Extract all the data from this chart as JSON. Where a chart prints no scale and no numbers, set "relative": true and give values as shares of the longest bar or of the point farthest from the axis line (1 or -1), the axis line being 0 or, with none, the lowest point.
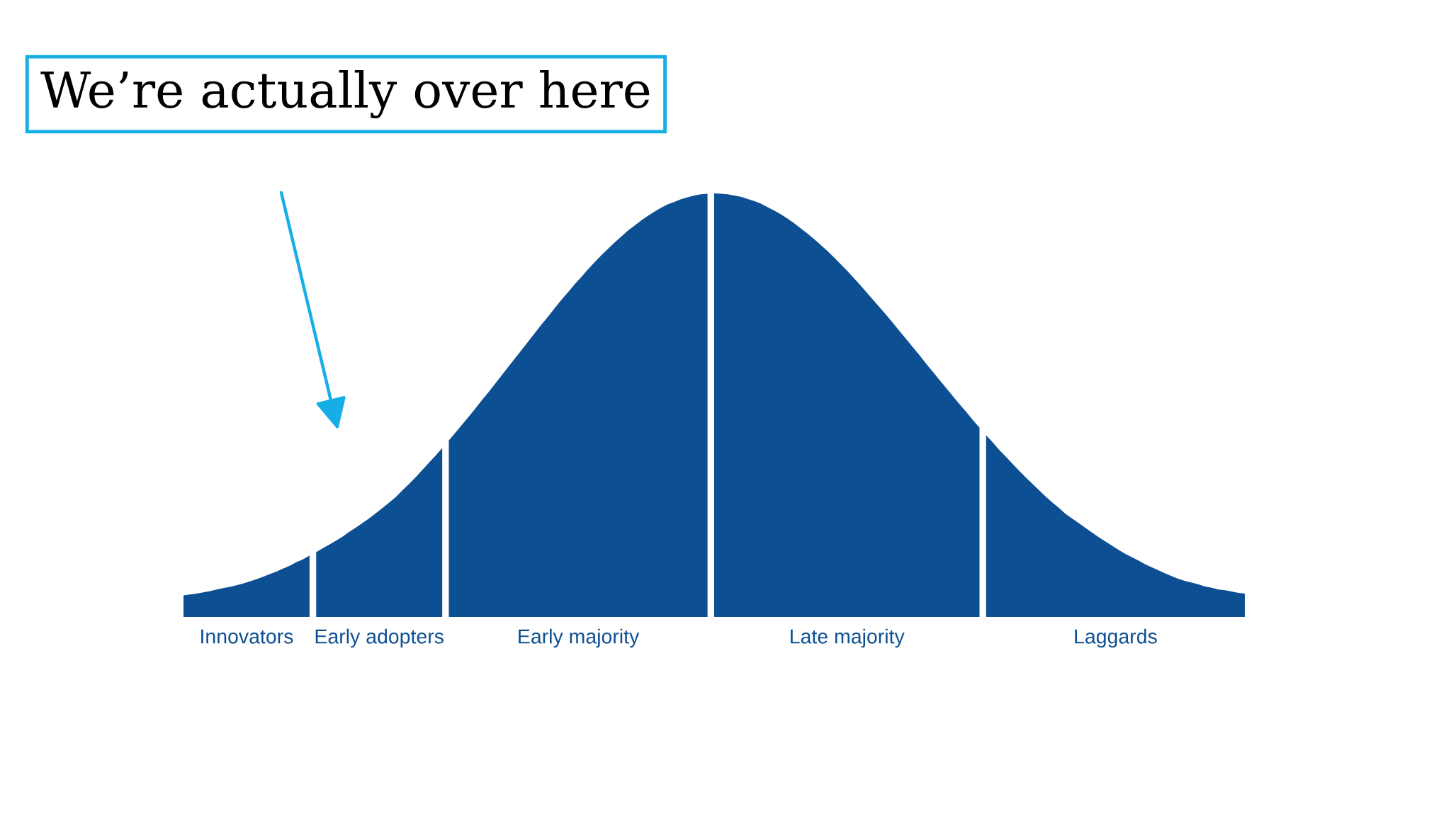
{
  "chart_data": {
    "type": "area",
    "relative": true,
    "annotations": [
      "We’re actually over here"
    ],
    "categories": [
      null,
      null,
      null,
      null,
      null,
      null,
      null,
      null,
      null,
      null,
      null,
      null,
      null,
      null,
      null,
      null,
      null,
      null,
      null,
      null,
      null,
      null,
      null,
      null,
      null,
      null,
      null,
      null,
      null,
      null,
      null,
      null,
      null,
      null,
      null,
      null,
      null,
      null,
      null,
      null,
      null,
      null,
      null,
      null,
      null,
      null,
      null,
      null,
      null,
      null,
      null,
      null,
      null,
      null,
      null,
      null,
      null,
      null,
      null,
      null,
      null,
      null,
      null,
      null,
      null,
      null,
      null,
      null,
      null,
      null,
      null,
      null,
      null,
      null,
      null,
      null,
      null,
      null,
      null,
      null,
      null,
      null,
      null,
      null,
      null,
      null,
      null,
      null,
      null,
      null,
      null,
      null,
      null,
      null,
      null,
      null,
      null,
      null,
      null,
      null,
      null,
      null,
      null,
      null,
      null,
      null,
      null,
      null,
      null,
      null,
      null,
      null,
      null,
      null,
      null,
      null,
      null,
      null,
      null,
      null,
      null,
      null,
      null,
      null,
      null,
      null,
      null,
      null,
      null,
      null,
      null,
      null,
      null,
      null,
      null,
      null,
      null,
      null,
      null,
      null,
      null,
      null,
      null,
      null,
      null,
      null,
      null,
      null,
      null,
      null,
      null,
      null,
      null,
      null,
      null,
      null,
      null,
      null,
      null,
      null,
      null
    ],
    "series": [
      {
        "name": "Innovators",
        "color": "#0d4f93",
        "values": [
          0.051,
          0.053,
          0.055,
          0.058,
          0.061,
          0.065,
          0.068,
          0.071,
          0.075,
          0.079,
          0.084,
          0.089,
          0.095,
          0.101,
          0.107,
          0.114,
          0.121,
          0.129,
          0.136,
          0.145,
          null,
          null,
          null,
          null,
          null,
          null,
          null,
          null,
          null,
          null,
          null,
          null,
          null,
          null,
          null,
          null,
          null,
          null,
          null,
          null,
          null,
          null,
          null,
          null,
          null,
          null,
          null,
          null,
          null,
          null,
          null,
          null,
          null,
          null,
          null,
          null,
          null,
          null,
          null,
          null,
          null,
          null,
          null,
          null,
          null,
          null,
          null,
          null,
          null,
          null,
          null,
          null,
          null,
          null,
          null,
          null,
          null,
          null,
          null,
          null,
          null,
          null,
          null,
          null,
          null,
          null,
          null,
          null,
          null,
          null,
          null,
          null,
          null,
          null,
          null,
          null,
          null,
          null,
          null,
          null,
          null,
          null,
          null,
          null,
          null,
          null,
          null,
          null,
          null,
          null,
          null,
          null,
          null,
          null,
          null,
          null,
          null,
          null,
          null,
          null,
          null,
          null,
          null,
          null,
          null,
          null,
          null,
          null,
          null,
          null,
          null,
          null,
          null,
          null,
          null,
          null,
          null,
          null,
          null,
          null,
          null,
          null,
          null,
          null,
          null,
          null,
          null,
          null,
          null,
          null,
          null,
          null,
          null,
          null,
          null,
          null,
          null,
          null,
          null,
          null,
          null
        ]
      },
      {
        "name": "Early adopters",
        "color": "#0d4f93",
        "values": [
          null,
          null,
          null,
          null,
          null,
          null,
          null,
          null,
          null,
          null,
          null,
          null,
          null,
          null,
          null,
          null,
          null,
          null,
          null,
          null,
          0.153,
          0.162,
          0.171,
          0.18,
          0.19,
          0.201,
          0.211,
          0.222,
          0.233,
          0.245,
          0.257,
          0.27,
          0.283,
          0.299,
          0.314,
          0.33,
          0.347,
          0.364,
          0.381,
          0.399,
          null,
          null,
          null,
          null,
          null,
          null,
          null,
          null,
          null,
          null,
          null,
          null,
          null,
          null,
          null,
          null,
          null,
          null,
          null,
          null,
          null,
          null,
          null,
          null,
          null,
          null,
          null,
          null,
          null,
          null,
          null,
          null,
          null,
          null,
          null,
          null,
          null,
          null,
          null,
          null,
          null,
          null,
          null,
          null,
          null,
          null,
          null,
          null,
          null,
          null,
          null,
          null,
          null,
          null,
          null,
          null,
          null,
          null,
          null,
          null,
          null,
          null,
          null,
          null,
          null,
          null,
          null,
          null,
          null,
          null,
          null,
          null,
          null,
          null,
          null,
          null,
          null,
          null,
          null,
          null,
          null,
          null,
          null,
          null,
          null,
          null,
          null,
          null,
          null,
          null,
          null,
          null,
          null,
          null,
          null,
          null,
          null,
          null,
          null,
          null,
          null,
          null,
          null,
          null,
          null,
          null,
          null,
          null,
          null,
          null,
          null,
          null,
          null,
          null,
          null,
          null,
          null,
          null,
          null,
          null,
          null
        ]
      },
      {
        "name": "Early majority",
        "color": "#0d4f93",
        "values": [
          null,
          null,
          null,
          null,
          null,
          null,
          null,
          null,
          null,
          null,
          null,
          null,
          null,
          null,
          null,
          null,
          null,
          null,
          null,
          null,
          null,
          null,
          null,
          null,
          null,
          null,
          null,
          null,
          null,
          null,
          null,
          null,
          null,
          null,
          null,
          null,
          null,
          null,
          null,
          null,
          0.417,
          0.435,
          0.454,
          0.473,
          0.492,
          0.512,
          0.531,
          0.551,
          0.571,
          0.591,
          0.611,
          0.631,
          0.651,
          0.671,
          0.691,
          0.71,
          0.73,
          0.749,
          0.767,
          0.786,
          0.803,
          0.821,
          0.838,
          0.854,
          0.869,
          0.884,
          0.898,
          0.912,
          0.924,
          0.936,
          0.947,
          0.957,
          0.966,
          0.974,
          0.98,
          0.986,
          0.991,
          0.995,
          0.998,
          0.999,
          null,
          null,
          null,
          null,
          null,
          null,
          null,
          null,
          null,
          null,
          null,
          null,
          null,
          null,
          null,
          null,
          null,
          null,
          null,
          null,
          null,
          null,
          null,
          null,
          null,
          null,
          null,
          null,
          null,
          null,
          null,
          null,
          null,
          null,
          null,
          null,
          null,
          null,
          null,
          null,
          null,
          null,
          null,
          null,
          null,
          null,
          null,
          null,
          null,
          null,
          null,
          null,
          null,
          null,
          null,
          null,
          null,
          null,
          null,
          null,
          null,
          null,
          null,
          null,
          null,
          null,
          null,
          null,
          null,
          null,
          null,
          null,
          null,
          null,
          null,
          null,
          null,
          null,
          null,
          null,
          null
        ]
      },
      {
        "name": "Late majority",
        "color": "#0d4f93",
        "values": [
          null,
          null,
          null,
          null,
          null,
          null,
          null,
          null,
          null,
          null,
          null,
          null,
          null,
          null,
          null,
          null,
          null,
          null,
          null,
          null,
          null,
          null,
          null,
          null,
          null,
          null,
          null,
          null,
          null,
          null,
          null,
          null,
          null,
          null,
          null,
          null,
          null,
          null,
          null,
          null,
          null,
          null,
          null,
          null,
          null,
          null,
          null,
          null,
          null,
          null,
          null,
          null,
          null,
          null,
          null,
          null,
          null,
          null,
          null,
          null,
          null,
          null,
          null,
          null,
          null,
          null,
          null,
          null,
          null,
          null,
          null,
          null,
          null,
          null,
          null,
          null,
          null,
          null,
          null,
          null,
          1,
          0.999,
          0.998,
          0.995,
          0.992,
          0.987,
          0.982,
          0.976,
          0.968,
          0.96,
          0.951,
          0.941,
          0.93,
          0.918,
          0.906,
          0.893,
          0.879,
          0.865,
          0.85,
          0.834,
          0.818,
          0.801,
          0.784,
          0.766,
          0.748,
          0.73,
          0.712,
          0.693,
          0.674,
          0.655,
          0.636,
          0.617,
          0.597,
          0.578,
          0.559,
          0.54,
          0.521,
          0.502,
          0.484,
          0.465,
          0.447,
          null,
          null,
          null,
          null,
          null,
          null,
          null,
          null,
          null,
          null,
          null,
          null,
          null,
          null,
          null,
          null,
          null,
          null,
          null,
          null,
          null,
          null,
          null,
          null,
          null,
          null,
          null,
          null,
          null,
          null,
          null,
          null,
          null,
          null,
          null,
          null,
          null,
          null,
          null,
          null
        ]
      },
      {
        "name": "Laggards",
        "color": "#0d4f93",
        "values": [
          null,
          null,
          null,
          null,
          null,
          null,
          null,
          null,
          null,
          null,
          null,
          null,
          null,
          null,
          null,
          null,
          null,
          null,
          null,
          null,
          null,
          null,
          null,
          null,
          null,
          null,
          null,
          null,
          null,
          null,
          null,
          null,
          null,
          null,
          null,
          null,
          null,
          null,
          null,
          null,
          null,
          null,
          null,
          null,
          null,
          null,
          null,
          null,
          null,
          null,
          null,
          null,
          null,
          null,
          null,
          null,
          null,
          null,
          null,
          null,
          null,
          null,
          null,
          null,
          null,
          null,
          null,
          null,
          null,
          null,
          null,
          null,
          null,
          null,
          null,
          null,
          null,
          null,
          null,
          null,
          null,
          null,
          null,
          null,
          null,
          null,
          null,
          null,
          null,
          null,
          null,
          null,
          null,
          null,
          null,
          null,
          null,
          null,
          null,
          null,
          null,
          null,
          null,
          null,
          null,
          null,
          null,
          null,
          null,
          null,
          null,
          null,
          null,
          null,
          null,
          null,
          null,
          null,
          null,
          null,
          null,
          0.429,
          0.412,
          0.394,
          0.378,
          0.361,
          0.345,
          0.329,
          0.314,
          0.299,
          0.284,
          0.27,
          0.257,
          0.243,
          0.232,
          0.221,
          0.21,
          0.199,
          0.188,
          0.178,
          0.168,
          0.158,
          0.149,
          0.141,
          0.133,
          0.124,
          0.117,
          0.11,
          0.103,
          0.096,
          0.09,
          0.085,
          0.081,
          0.077,
          0.072,
          0.069,
          0.065,
          0.063,
          0.06,
          0.057,
          0.055
        ]
      }
    ]
  }
}
